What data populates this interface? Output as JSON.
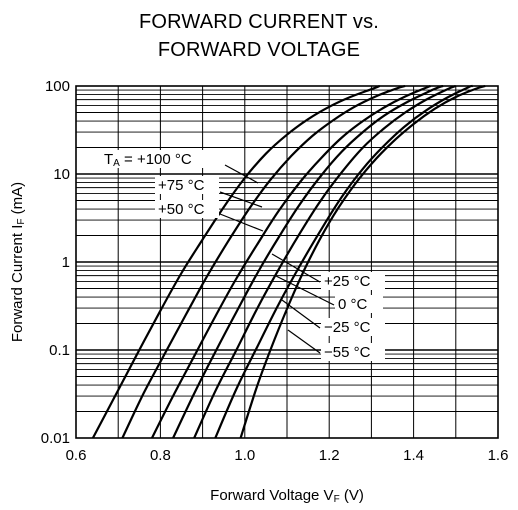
{
  "chart_data": {
    "type": "line",
    "title_lines": [
      "FORWARD CURRENT vs.",
      "FORWARD VOLTAGE"
    ],
    "xlabel": {
      "main": "Forward Voltage  V",
      "sub": "F",
      "tail": " (V)"
    },
    "ylabel": {
      "main": "Forward Current  I",
      "sub": "F",
      "tail": " (mA)"
    },
    "xlim": [
      0.6,
      1.6
    ],
    "ylim": [
      0.01,
      100
    ],
    "yscale": "log",
    "grid": true,
    "x_ticks": [
      "0.6",
      "0.8",
      "1.0",
      "1.2",
      "1.4",
      "1.6"
    ],
    "y_ticks": [
      "0.01",
      "0.1",
      "1",
      "10",
      "100"
    ],
    "series": [
      {
        "name": "+100 °C",
        "label": "TA = +100 °C",
        "points": [
          [
            0.64,
            0.01
          ],
          [
            0.7,
            0.035
          ],
          [
            0.75,
            0.1
          ],
          [
            0.8,
            0.28
          ],
          [
            0.85,
            0.75
          ],
          [
            0.9,
            1.8
          ],
          [
            0.95,
            4.2
          ],
          [
            1.0,
            9
          ],
          [
            1.05,
            17
          ],
          [
            1.1,
            28
          ],
          [
            1.15,
            42
          ],
          [
            1.2,
            58
          ],
          [
            1.25,
            75
          ],
          [
            1.3,
            92
          ],
          [
            1.32,
            100
          ]
        ]
      },
      {
        "name": "+75 °C",
        "label": "+75 °C",
        "points": [
          [
            0.71,
            0.01
          ],
          [
            0.76,
            0.032
          ],
          [
            0.81,
            0.09
          ],
          [
            0.86,
            0.25
          ],
          [
            0.91,
            0.68
          ],
          [
            0.96,
            1.7
          ],
          [
            1.01,
            4
          ],
          [
            1.06,
            8.5
          ],
          [
            1.11,
            16
          ],
          [
            1.16,
            27
          ],
          [
            1.21,
            41
          ],
          [
            1.26,
            58
          ],
          [
            1.31,
            76
          ],
          [
            1.36,
            94
          ],
          [
            1.38,
            100
          ]
        ]
      },
      {
        "name": "+50 °C",
        "label": "+50 °C",
        "points": [
          [
            0.78,
            0.01
          ],
          [
            0.83,
            0.03
          ],
          [
            0.88,
            0.085
          ],
          [
            0.93,
            0.24
          ],
          [
            0.98,
            0.65
          ],
          [
            1.03,
            1.6
          ],
          [
            1.08,
            3.8
          ],
          [
            1.13,
            8
          ],
          [
            1.18,
            15
          ],
          [
            1.23,
            26
          ],
          [
            1.28,
            40
          ],
          [
            1.33,
            57
          ],
          [
            1.38,
            76
          ],
          [
            1.43,
            96
          ],
          [
            1.44,
            100
          ]
        ]
      },
      {
        "name": "+25 °C",
        "label": "+25 °C",
        "points": [
          [
            0.83,
            0.01
          ],
          [
            0.88,
            0.032
          ],
          [
            0.93,
            0.095
          ],
          [
            0.98,
            0.27
          ],
          [
            1.03,
            0.75
          ],
          [
            1.08,
            1.9
          ],
          [
            1.13,
            4.5
          ],
          [
            1.18,
            9.5
          ],
          [
            1.23,
            18
          ],
          [
            1.28,
            30
          ],
          [
            1.33,
            46
          ],
          [
            1.38,
            64
          ],
          [
            1.43,
            84
          ],
          [
            1.46,
            97
          ],
          [
            1.47,
            100
          ]
        ]
      },
      {
        "name": "0 °C",
        "label": "0 °C",
        "points": [
          [
            0.88,
            0.01
          ],
          [
            0.93,
            0.034
          ],
          [
            0.98,
            0.1
          ],
          [
            1.03,
            0.3
          ],
          [
            1.08,
            0.82
          ],
          [
            1.13,
            2.1
          ],
          [
            1.18,
            5
          ],
          [
            1.23,
            10.5
          ],
          [
            1.28,
            20
          ],
          [
            1.33,
            33
          ],
          [
            1.38,
            50
          ],
          [
            1.43,
            70
          ],
          [
            1.48,
            92
          ],
          [
            1.5,
            100
          ]
        ]
      },
      {
        "name": "-25 °C",
        "label": "−25 °C",
        "points": [
          [
            0.93,
            0.01
          ],
          [
            0.98,
            0.036
          ],
          [
            1.03,
            0.11
          ],
          [
            1.08,
            0.33
          ],
          [
            1.13,
            0.9
          ],
          [
            1.18,
            2.3
          ],
          [
            1.23,
            5.5
          ],
          [
            1.28,
            11.5
          ],
          [
            1.33,
            21
          ],
          [
            1.38,
            35
          ],
          [
            1.43,
            53
          ],
          [
            1.48,
            74
          ],
          [
            1.53,
            97
          ],
          [
            1.54,
            100
          ]
        ]
      },
      {
        "name": "-55 °C",
        "label": "−55 °C",
        "points": [
          [
            0.99,
            0.01
          ],
          [
            1.03,
            0.04
          ],
          [
            1.07,
            0.13
          ],
          [
            1.11,
            0.38
          ],
          [
            1.15,
            1
          ],
          [
            1.2,
            2.8
          ],
          [
            1.25,
            6.5
          ],
          [
            1.3,
            13
          ],
          [
            1.35,
            23
          ],
          [
            1.4,
            37
          ],
          [
            1.45,
            55
          ],
          [
            1.5,
            75
          ],
          [
            1.55,
            94
          ],
          [
            1.57,
            100
          ]
        ]
      }
    ],
    "annotations": [
      {
        "series": 0,
        "label_sub": "A",
        "label_prefix": "T",
        "label_rest": " = +100 °C"
      }
    ]
  }
}
